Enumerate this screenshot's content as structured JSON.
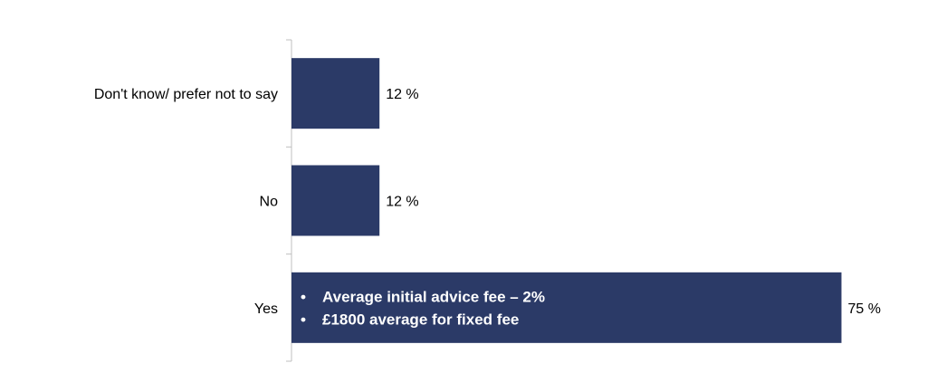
{
  "chart_data": {
    "type": "bar",
    "orientation": "horizontal",
    "categories": [
      "Don't know/ prefer not to say",
      "No",
      "Yes"
    ],
    "values": [
      12,
      12,
      75
    ],
    "value_suffix": " %",
    "xlim": [
      0,
      100
    ],
    "title": "",
    "xlabel": "",
    "ylabel": "",
    "grid": false,
    "legend": "none",
    "bar_color": "#2b3a67",
    "annotation": {
      "category": "Yes",
      "bullets": [
        "Average initial advice fee – 2%",
        "£1800 average for fixed fee"
      ]
    }
  }
}
